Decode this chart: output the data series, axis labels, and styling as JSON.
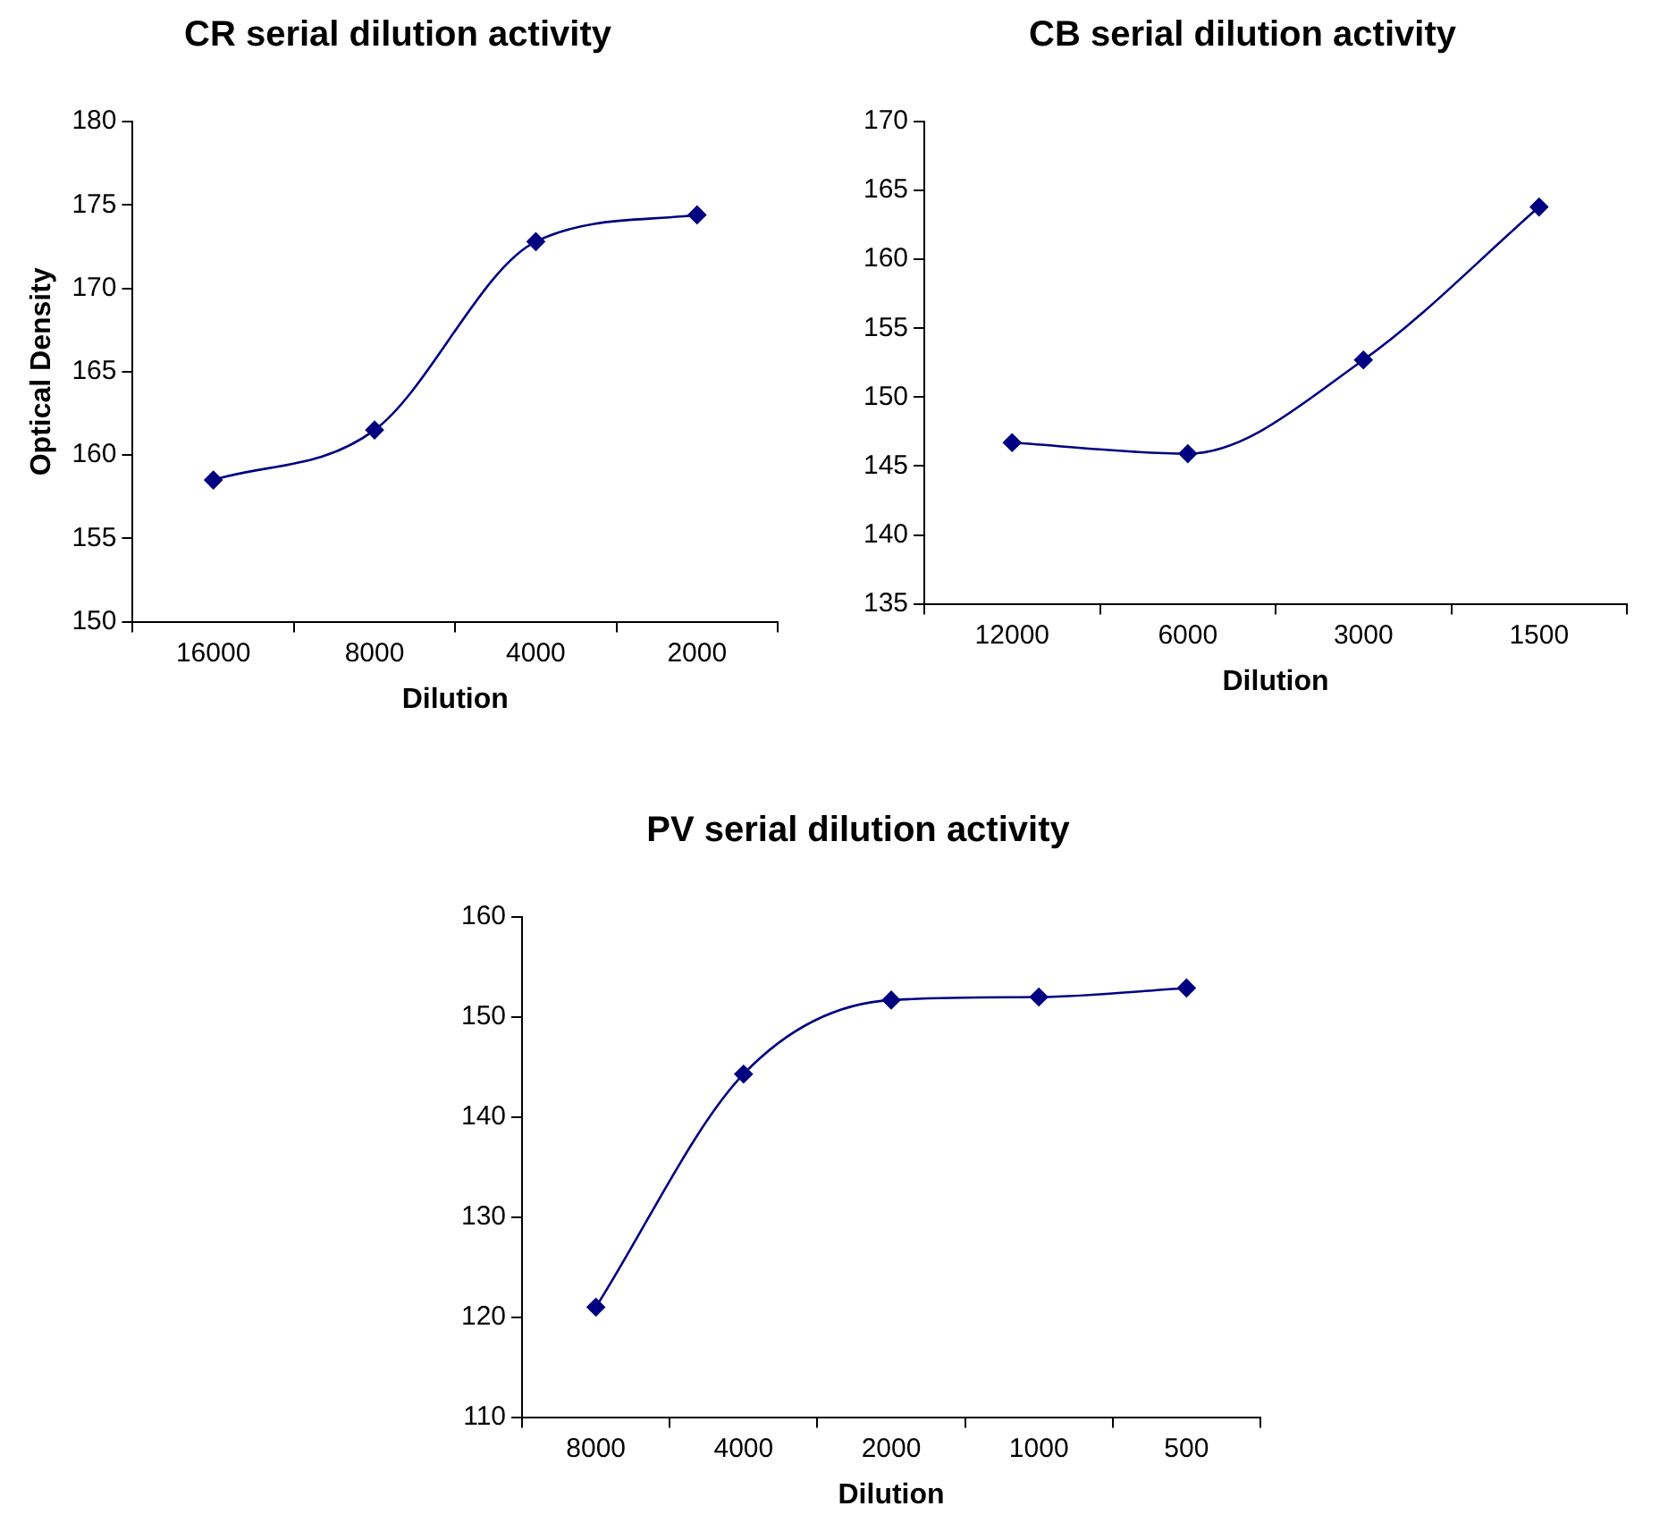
{
  "chart_data": [
    {
      "type": "line",
      "title": "CR serial dilution activity",
      "xlabel": "Dilution",
      "ylabel": "Optical Density",
      "categories": [
        "16000",
        "8000",
        "4000",
        "2000"
      ],
      "series": [
        {
          "color": "#000080",
          "values": [
            158.5,
            161.5,
            172.8,
            174.4
          ]
        }
      ],
      "ylim": [
        150,
        180
      ],
      "yticks": [
        150,
        155,
        160,
        165,
        170,
        175,
        180
      ],
      "marker": "diamond",
      "legend": false
    },
    {
      "type": "line",
      "title": "CB serial dilution activity",
      "xlabel": "Dilution",
      "categories": [
        "12000",
        "6000",
        "3000",
        "1500"
      ],
      "series": [
        {
          "color": "#000080",
          "values": [
            146.7,
            145.9,
            152.7,
            163.8
          ]
        }
      ],
      "ylim": [
        135,
        170
      ],
      "yticks": [
        135,
        140,
        145,
        150,
        155,
        160,
        165,
        170
      ],
      "marker": "diamond",
      "legend": false
    },
    {
      "type": "line",
      "title": "PV serial dilution activity",
      "xlabel": "Dilution",
      "categories": [
        "8000",
        "4000",
        "2000",
        "1000",
        "500"
      ],
      "series": [
        {
          "color": "#000080",
          "values": [
            121,
            144.3,
            151.7,
            152.0,
            152.9
          ]
        }
      ],
      "ylim": [
        110,
        160
      ],
      "yticks": [
        110,
        120,
        130,
        140,
        150,
        160
      ],
      "marker": "diamond",
      "legend": false
    }
  ]
}
